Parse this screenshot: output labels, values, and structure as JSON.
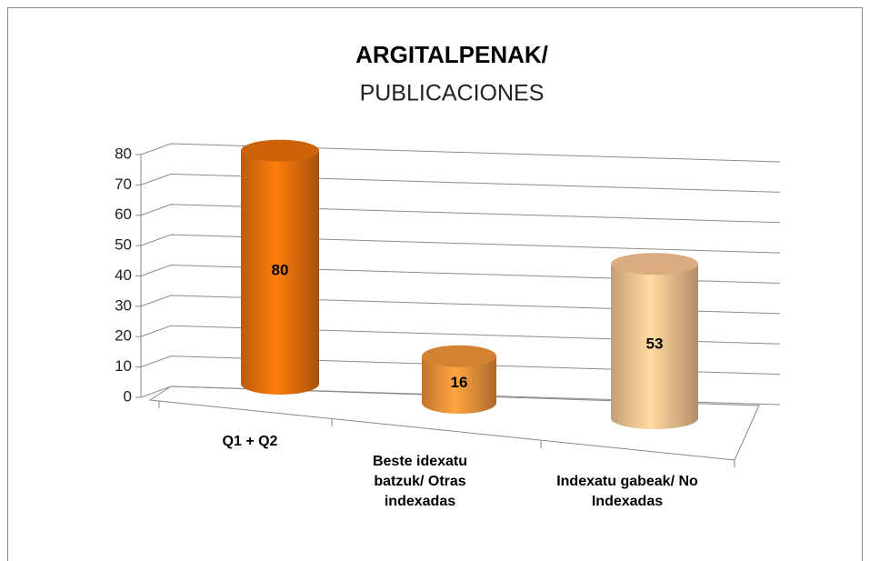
{
  "chart_data": {
    "type": "cylinder-bar",
    "title": "ARGITALPENAK/",
    "subtitle": "PUBLICACIONES",
    "categories": [
      "Q1 + Q2",
      "Beste idexatu batzuk/ Otras indexadas",
      "Indexatu gabeak/ No Indexadas"
    ],
    "values": [
      80,
      16,
      53
    ],
    "colors": [
      "#e8700c",
      "#f0933a",
      "#f8c491"
    ],
    "ylim": [
      0,
      80
    ],
    "yticks": [
      0,
      10,
      20,
      30,
      40,
      50,
      60,
      70,
      80
    ],
    "grid": true
  }
}
